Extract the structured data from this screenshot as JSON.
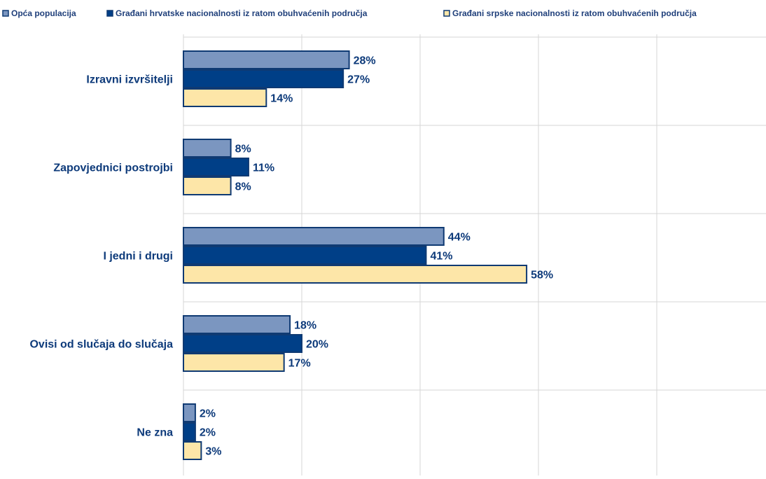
{
  "chart_data": {
    "type": "bar",
    "orientation": "horizontal",
    "categories": [
      "Izravni izvršitelji",
      "Zapovjednici postrojbi",
      "I jedni i drugi",
      "Ovisi od slučaja do slučaja",
      "Ne zna"
    ],
    "series": [
      {
        "name": "Opća populacija",
        "values": [
          28,
          8,
          44,
          18,
          2
        ],
        "labels": [
          "28%",
          "8%",
          "44%",
          "18%",
          "2%"
        ],
        "color": "#7b96c0"
      },
      {
        "name": "Građani hrvatske nacionalnosti iz ratom obuhvaćenih područja",
        "values": [
          27,
          11,
          41,
          20,
          2
        ],
        "labels": [
          "27%",
          "11%",
          "41%",
          "20%",
          "2%"
        ],
        "color": "#003f87"
      },
      {
        "name": "Građani srpske nacionalnosti iz ratom obuhvaćenih područja",
        "values": [
          14,
          8,
          58,
          17,
          3
        ],
        "labels": [
          "14%",
          "8%",
          "58%",
          "17%",
          "3%"
        ],
        "color": "#fde6a8"
      }
    ],
    "bar_outline_color": "#0f3a73",
    "grid_color": "#d6d6d6",
    "xlim": [
      0,
      100
    ],
    "grid": true,
    "legend_position": "top"
  }
}
